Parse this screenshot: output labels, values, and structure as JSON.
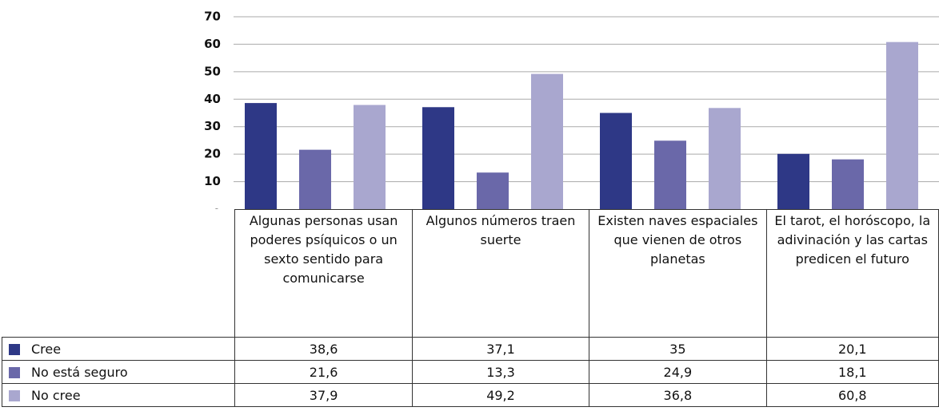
{
  "chart_data": {
    "type": "bar",
    "categories": [
      "Algunas personas usan poderes psíquicos o un sexto sentido para comunicarse",
      "Algunos números traen suerte",
      "Existen naves espaciales que vienen de otros planetas",
      "El tarot, el horóscopo, la adivinación y las cartas predicen el futuro"
    ],
    "series": [
      {
        "name": "Cree",
        "color": "#2e3886",
        "values": [
          38.6,
          37.1,
          35,
          20.1
        ],
        "value_labels": [
          "38,6",
          "37,1",
          "35",
          "20,1"
        ]
      },
      {
        "name": "No está seguro",
        "color": "#6a68a9",
        "values": [
          21.6,
          13.3,
          24.9,
          18.1
        ],
        "value_labels": [
          "21,6",
          "13,3",
          "24,9",
          "18,1"
        ]
      },
      {
        "name": "No cree",
        "color": "#a9a7cf",
        "values": [
          37.9,
          49.2,
          36.8,
          60.8
        ],
        "value_labels": [
          "37,9",
          "49,2",
          "36,8",
          "60,8"
        ]
      }
    ],
    "ylim": [
      0,
      70
    ],
    "yticks": [
      0,
      10,
      20,
      30,
      40,
      50,
      60,
      70
    ],
    "grid": true
  }
}
